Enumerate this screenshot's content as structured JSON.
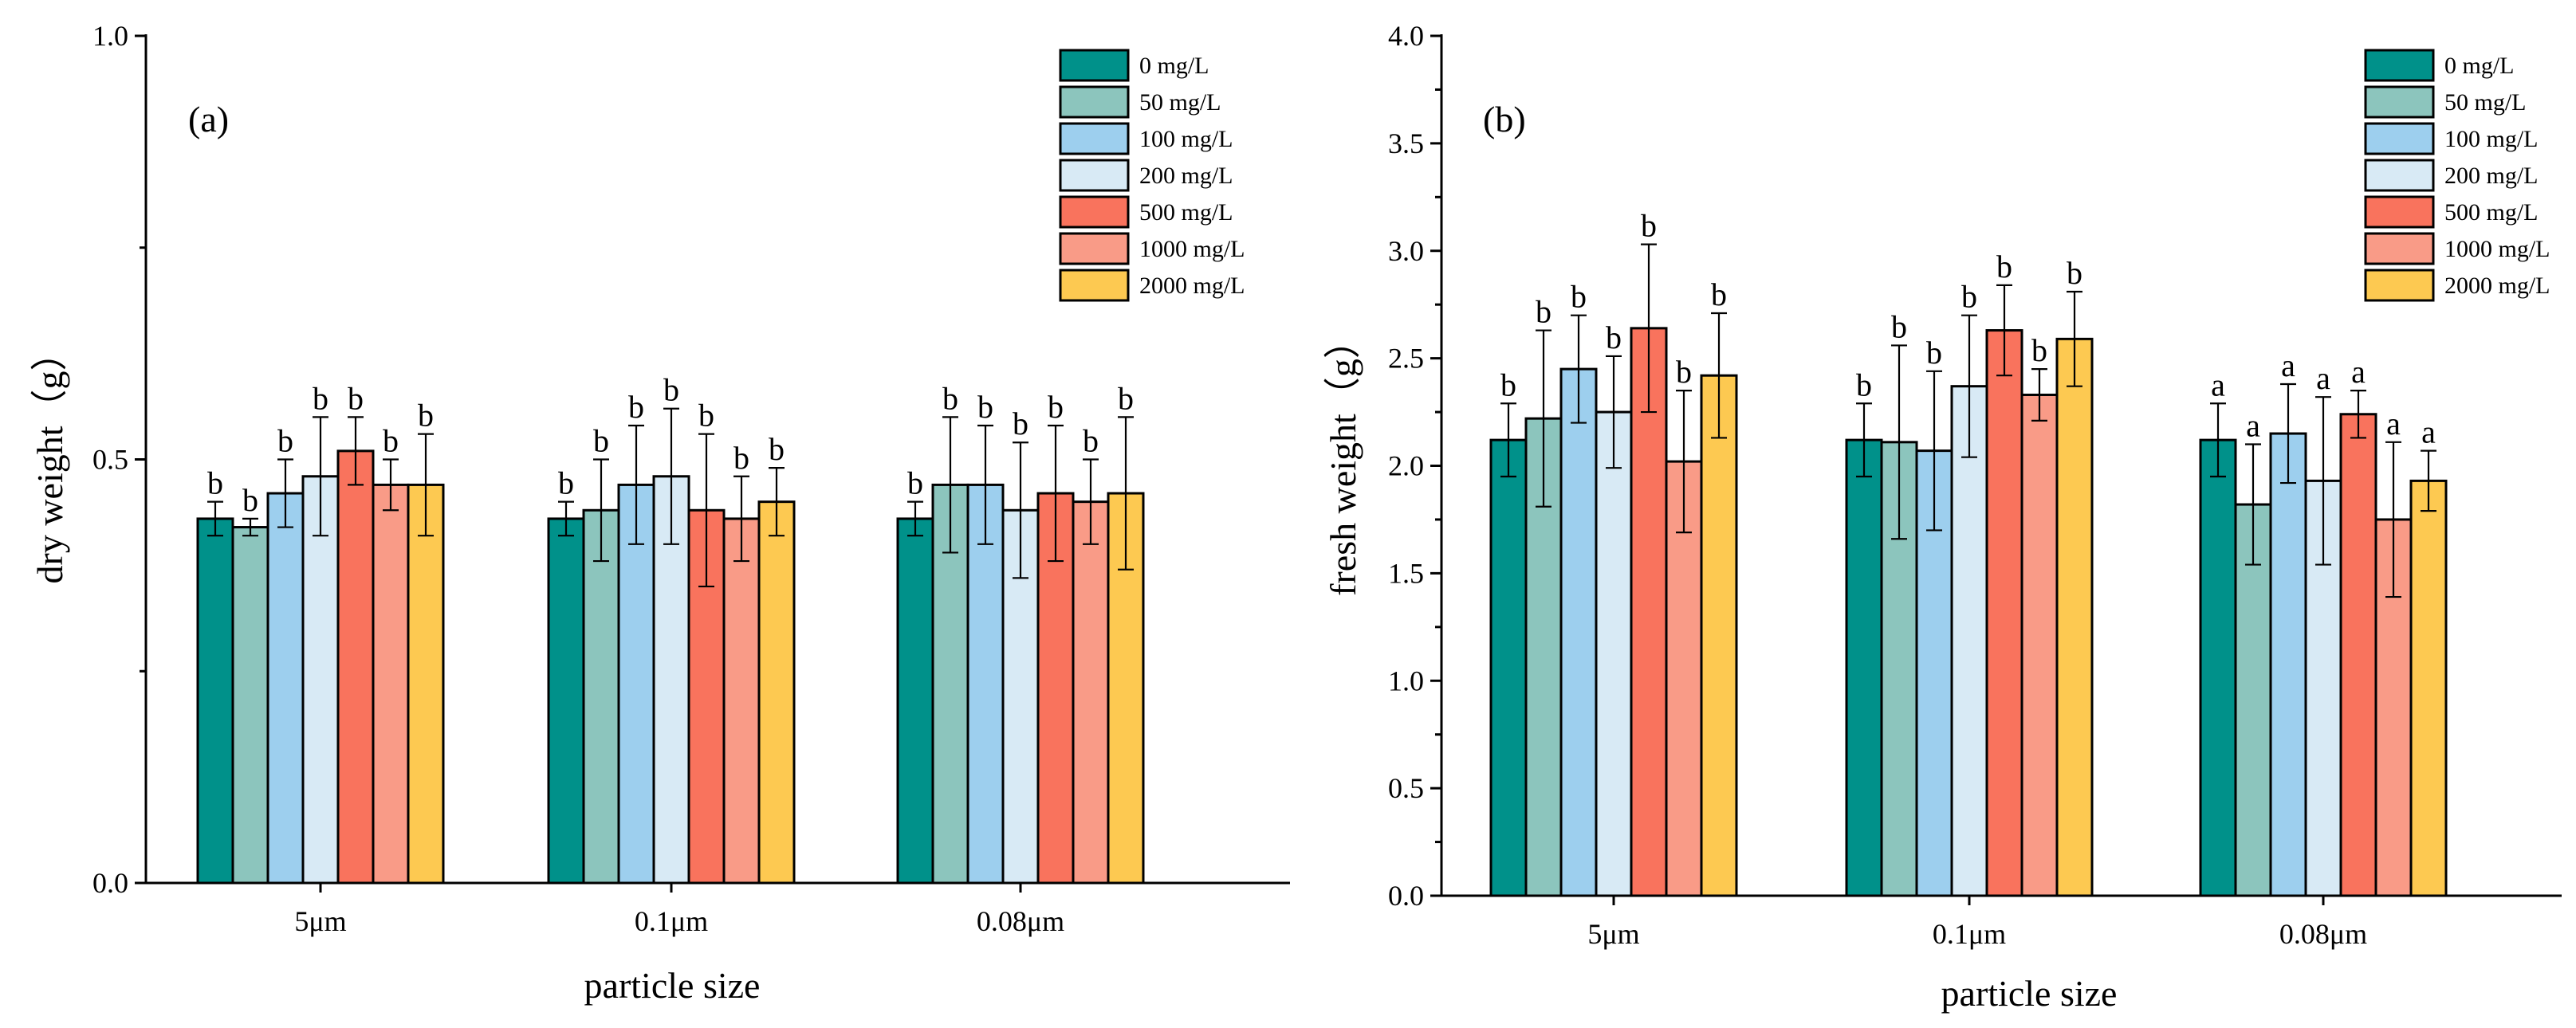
{
  "chart_data": [
    {
      "type": "bar",
      "panel": "(a)",
      "categories": [
        "5μm",
        "0.1μm",
        "0.08μm"
      ],
      "xlabel": "particle size",
      "ylabel": "dry weight（g）",
      "ylim": [
        0,
        1.0
      ],
      "yticks": [
        "0.0",
        "0.5",
        "1.0"
      ],
      "legend_position": "top-right",
      "series": [
        {
          "name": "0 mg/L",
          "color": "#00918a",
          "values": [
            0.43,
            0.43,
            0.43
          ],
          "errors": [
            0.02,
            0.02,
            0.02
          ],
          "labels": [
            "b",
            "b",
            "b"
          ]
        },
        {
          "name": "50 mg/L",
          "color": "#8cc5bd",
          "values": [
            0.42,
            0.44,
            0.47
          ],
          "errors": [
            0.01,
            0.06,
            0.08
          ],
          "labels": [
            "b",
            "b",
            "b"
          ]
        },
        {
          "name": "100 mg/L",
          "color": "#9dcfee",
          "values": [
            0.46,
            0.47,
            0.47
          ],
          "errors": [
            0.04,
            0.07,
            0.07
          ],
          "labels": [
            "b",
            "b",
            "b"
          ]
        },
        {
          "name": "200 mg/L",
          "color": "#d8eaf5",
          "values": [
            0.48,
            0.48,
            0.44
          ],
          "errors": [
            0.07,
            0.08,
            0.08
          ],
          "labels": [
            "b",
            "b",
            "b"
          ]
        },
        {
          "name": "500 mg/L",
          "color": "#f9735d",
          "values": [
            0.51,
            0.44,
            0.46
          ],
          "errors": [
            0.04,
            0.09,
            0.08
          ],
          "labels": [
            "b",
            "b",
            "b"
          ]
        },
        {
          "name": "1000 mg/L",
          "color": "#f99b87",
          "values": [
            0.47,
            0.43,
            0.45
          ],
          "errors": [
            0.03,
            0.05,
            0.05
          ],
          "labels": [
            "b",
            "b",
            "b"
          ]
        },
        {
          "name": "2000 mg/L",
          "color": "#fdc951",
          "values": [
            0.47,
            0.45,
            0.46
          ],
          "errors": [
            0.06,
            0.04,
            0.09
          ],
          "labels": [
            "b",
            "b",
            "b"
          ]
        }
      ]
    },
    {
      "type": "bar",
      "panel": "(b)",
      "categories": [
        "5μm",
        "0.1μm",
        "0.08μm"
      ],
      "xlabel": "particle size",
      "ylabel": "fresh weight（g）",
      "ylim": [
        0,
        4.0
      ],
      "yticks": [
        "0.0",
        "0.5",
        "1.0",
        "1.5",
        "2.0",
        "2.5",
        "3.0",
        "3.5",
        "4.0"
      ],
      "legend_position": "top-right",
      "series": [
        {
          "name": "0 mg/L",
          "color": "#00918a",
          "values": [
            2.12,
            2.12,
            2.12
          ],
          "errors": [
            0.17,
            0.17,
            0.17
          ],
          "labels": [
            "b",
            "b",
            "a"
          ]
        },
        {
          "name": "50 mg/L",
          "color": "#8cc5bd",
          "values": [
            2.22,
            2.11,
            1.82
          ],
          "errors": [
            0.41,
            0.45,
            0.28
          ],
          "labels": [
            "b",
            "b",
            "a"
          ]
        },
        {
          "name": "100 mg/L",
          "color": "#9dcfee",
          "values": [
            2.45,
            2.07,
            2.15
          ],
          "errors": [
            0.25,
            0.37,
            0.23
          ],
          "labels": [
            "b",
            "b",
            "a"
          ]
        },
        {
          "name": "200 mg/L",
          "color": "#d8eaf5",
          "values": [
            2.25,
            2.37,
            1.93
          ],
          "errors": [
            0.26,
            0.33,
            0.39
          ],
          "labels": [
            "b",
            "b",
            "a"
          ]
        },
        {
          "name": "500 mg/L",
          "color": "#f9735d",
          "values": [
            2.64,
            2.63,
            2.24
          ],
          "errors": [
            0.39,
            0.21,
            0.11
          ],
          "labels": [
            "b",
            "b",
            "a"
          ]
        },
        {
          "name": "1000 mg/L",
          "color": "#f99b87",
          "values": [
            2.02,
            2.33,
            1.75
          ],
          "errors": [
            0.33,
            0.12,
            0.36
          ],
          "labels": [
            "b",
            "b",
            "a"
          ]
        },
        {
          "name": "2000 mg/L",
          "color": "#fdc951",
          "values": [
            2.42,
            2.59,
            1.93
          ],
          "errors": [
            0.29,
            0.22,
            0.14
          ],
          "labels": [
            "b",
            "b",
            "a"
          ]
        }
      ]
    }
  ]
}
